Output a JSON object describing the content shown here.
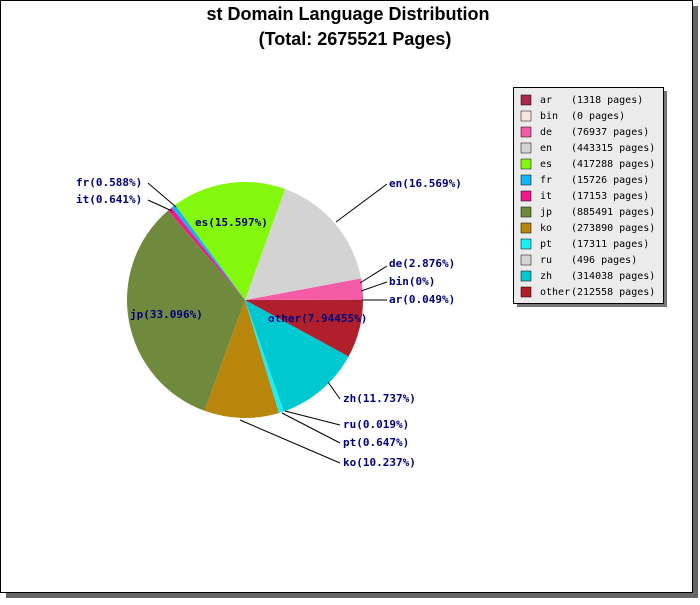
{
  "chart_data": {
    "type": "pie",
    "title": "st Domain Language Distribution",
    "subtitle": "(Total: 2675521 Pages)",
    "categories": [
      "ar",
      "bin",
      "de",
      "en",
      "es",
      "fr",
      "it",
      "jp",
      "ko",
      "pt",
      "ru",
      "zh",
      "other"
    ],
    "values": [
      0.049,
      0,
      2.876,
      16.569,
      15.597,
      0.588,
      0.641,
      33.096,
      10.237,
      0.647,
      0.019,
      11.737,
      7.94455
    ],
    "value_labels": [
      "ar(0.049%)",
      "bin(0%)",
      "de(2.876%)",
      "en(16.569%)",
      "es(15.597%)",
      "fr(0.588%)",
      "it(0.641%)",
      "jp(33.096%)",
      "ko(10.237%)",
      "pt(0.647%)",
      "ru(0.019%)",
      "zh(11.737%)",
      "other(7.94455%)"
    ],
    "legend_labels": [
      "(1318 pages)",
      "(0 pages)",
      "(76937 pages)",
      "(443315 pages)",
      "(417288 pages)",
      "(15726 pages)",
      "(17153 pages)",
      "(885491 pages)",
      "(273890 pages)",
      "(17311 pages)",
      "(496 pages)",
      "(314038 pages)",
      "(212558 pages)"
    ],
    "colors": [
      "#a8284a",
      "#f7e8dc",
      "#f45ca8",
      "#d3d3d3",
      "#84f80c",
      "#14b4f4",
      "#f0188c",
      "#6f8a3c",
      "#b8860b",
      "#18f0f8",
      "#d4d4d4",
      "#00c8d0",
      "#b0202c"
    ],
    "legend": "upper right"
  }
}
